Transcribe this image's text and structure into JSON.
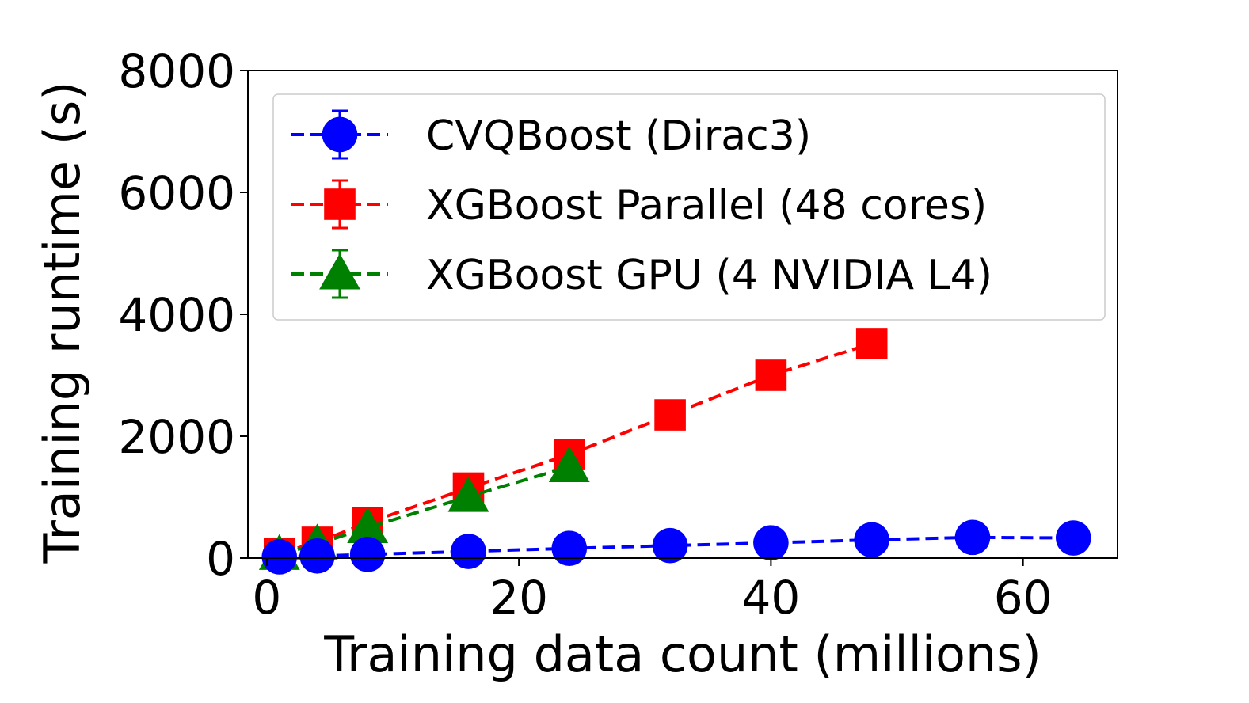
{
  "chart_data": {
    "type": "line",
    "title": "",
    "xlabel": "Training data count (millions)",
    "ylabel": "Training runtime (s)",
    "xlim": [
      -1.5,
      67.5
    ],
    "ylim": [
      0,
      8000
    ],
    "grid": false,
    "legend_position": "upper-left",
    "xticks": [
      0,
      20,
      40,
      60
    ],
    "xtick_labels": [
      "0",
      "20",
      "40",
      "60"
    ],
    "yticks": [
      0,
      2000,
      4000,
      6000,
      8000
    ],
    "ytick_labels": [
      "0",
      "2000",
      "4000",
      "6000",
      "8000"
    ],
    "series": [
      {
        "name": "CVQBoost (Dirac3)",
        "color": "#0000ff",
        "marker": "circle",
        "x": [
          1,
          4,
          8,
          16,
          24,
          32,
          40,
          48,
          56,
          64
        ],
        "y": [
          20,
          35,
          60,
          110,
          160,
          205,
          250,
          300,
          340,
          330
        ]
      },
      {
        "name": "XGBoost Parallel (48 cores)",
        "color": "#ff0000",
        "marker": "square",
        "x": [
          1,
          4,
          8,
          16,
          24,
          32,
          40,
          48
        ],
        "y": [
          80,
          260,
          580,
          1150,
          1700,
          2350,
          3000,
          3520
        ]
      },
      {
        "name": "XGBoost GPU (4 NVIDIA L4)",
        "color": "#008000",
        "marker": "triangle",
        "x": [
          1,
          4,
          8,
          16,
          24
        ],
        "y": [
          60,
          230,
          500,
          1010,
          1500
        ]
      }
    ]
  }
}
